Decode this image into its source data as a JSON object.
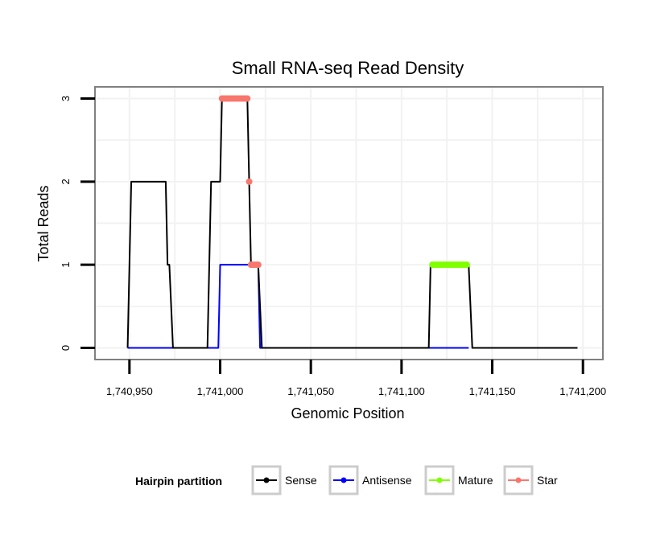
{
  "chart_data": {
    "type": "line",
    "title": "Small RNA-seq Read Density",
    "xlabel": "Genomic Position",
    "ylabel": "Total Reads",
    "xlim": [
      1740931,
      1741211
    ],
    "ylim": [
      -0.14,
      3.14
    ],
    "x_ticks": [
      1740950,
      1741000,
      1741050,
      1741100,
      1741150,
      1741200
    ],
    "x_tick_labels": [
      "1,740,950",
      "1,741,000",
      "1,741,050",
      "1,741,100",
      "1,741,150",
      "1,741,200"
    ],
    "y_ticks": [
      0,
      1,
      2,
      3
    ],
    "y_tick_labels": [
      "0",
      "1",
      "2",
      "3"
    ],
    "grid": true,
    "legend": {
      "title": "Hairpin partition",
      "position": "bottom",
      "entries": [
        "Sense",
        "Antisense",
        "Mature",
        "Star"
      ]
    },
    "series": [
      {
        "name": "Sense",
        "color": "#000000",
        "kind": "line",
        "x": [
          1740949,
          1740950,
          1740951,
          1740970,
          1740971,
          1740972,
          1740973,
          1740974,
          1740993,
          1740994,
          1740995,
          1740996,
          1741000,
          1741001,
          1741002,
          1741015,
          1741016,
          1741017,
          1741021,
          1741022,
          1741023,
          1741115,
          1741116,
          1741117,
          1741137,
          1741138,
          1741139,
          1741197
        ],
        "y": [
          0,
          1,
          2,
          2,
          1,
          1,
          0.5,
          0,
          0,
          1,
          2,
          2,
          2,
          3,
          3,
          3,
          2,
          1,
          1,
          0.5,
          0,
          0,
          1,
          1,
          1,
          0.5,
          0,
          0
        ]
      },
      {
        "name": "Antisense",
        "color": "#0000ff",
        "kind": "line",
        "x": [
          1740949,
          1740999,
          1741000,
          1741021,
          1741022,
          1741115,
          1741137
        ],
        "y": [
          0,
          0,
          1,
          1,
          0,
          0,
          0
        ]
      },
      {
        "name": "Mature",
        "color": "#80ff00",
        "kind": "points",
        "x": [
          1741117,
          1741118,
          1741119,
          1741120,
          1741121,
          1741122,
          1741123,
          1741124,
          1741125,
          1741126,
          1741127,
          1741128,
          1741129,
          1741130,
          1741131,
          1741132,
          1741133,
          1741134,
          1741135,
          1741136
        ],
        "y": [
          1,
          1,
          1,
          1,
          1,
          1,
          1,
          1,
          1,
          1,
          1,
          1,
          1,
          1,
          1,
          1,
          1,
          1,
          1,
          1
        ]
      },
      {
        "name": "Star",
        "color": "#f8766d",
        "kind": "points",
        "x": [
          1741001,
          1741002,
          1741003,
          1741004,
          1741005,
          1741006,
          1741007,
          1741008,
          1741009,
          1741010,
          1741011,
          1741012,
          1741013,
          1741014,
          1741015,
          1741016,
          1741017,
          1741018,
          1741019,
          1741020,
          1741021
        ],
        "y": [
          3,
          3,
          3,
          3,
          3,
          3,
          3,
          3,
          3,
          3,
          3,
          3,
          3,
          3,
          3,
          2,
          1,
          1,
          1,
          1,
          1
        ]
      }
    ]
  },
  "colors": {
    "panel_border": "#808080",
    "grid": "#f2f2f2",
    "legend_key_border": "#cccccc"
  }
}
